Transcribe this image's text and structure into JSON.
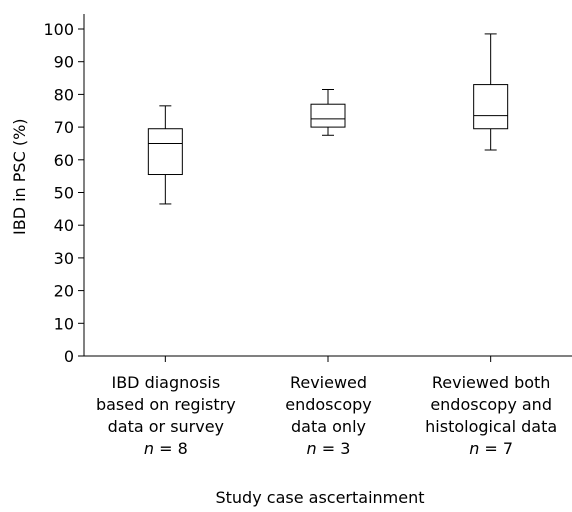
{
  "chart_data": {
    "type": "box",
    "ylabel": "IBD in PSC (%)",
    "xlabel": "Study case ascertainment",
    "ylim": [
      0,
      100
    ],
    "yticks": [
      0,
      10,
      20,
      30,
      40,
      50,
      60,
      70,
      80,
      90,
      100
    ],
    "grid": false,
    "categories": [
      {
        "label_lines": [
          "IBD diagnosis",
          "based on registry",
          "data or survey"
        ],
        "n_symbol": "n",
        "n_text": " = 8",
        "min": 46.5,
        "q1": 55.5,
        "median": 65,
        "q3": 69.5,
        "max": 76.5
      },
      {
        "label_lines": [
          "Reviewed",
          "endoscopy",
          "data only"
        ],
        "n_symbol": "n",
        "n_text": " = 3",
        "min": 67.5,
        "q1": 70,
        "median": 72.5,
        "q3": 77,
        "max": 81.5
      },
      {
        "label_lines": [
          "Reviewed both",
          "endoscopy and",
          "histological data"
        ],
        "n_symbol": "n",
        "n_text": " = 7",
        "min": 63,
        "q1": 69.5,
        "median": 73.5,
        "q3": 83,
        "max": 98.5
      }
    ]
  }
}
